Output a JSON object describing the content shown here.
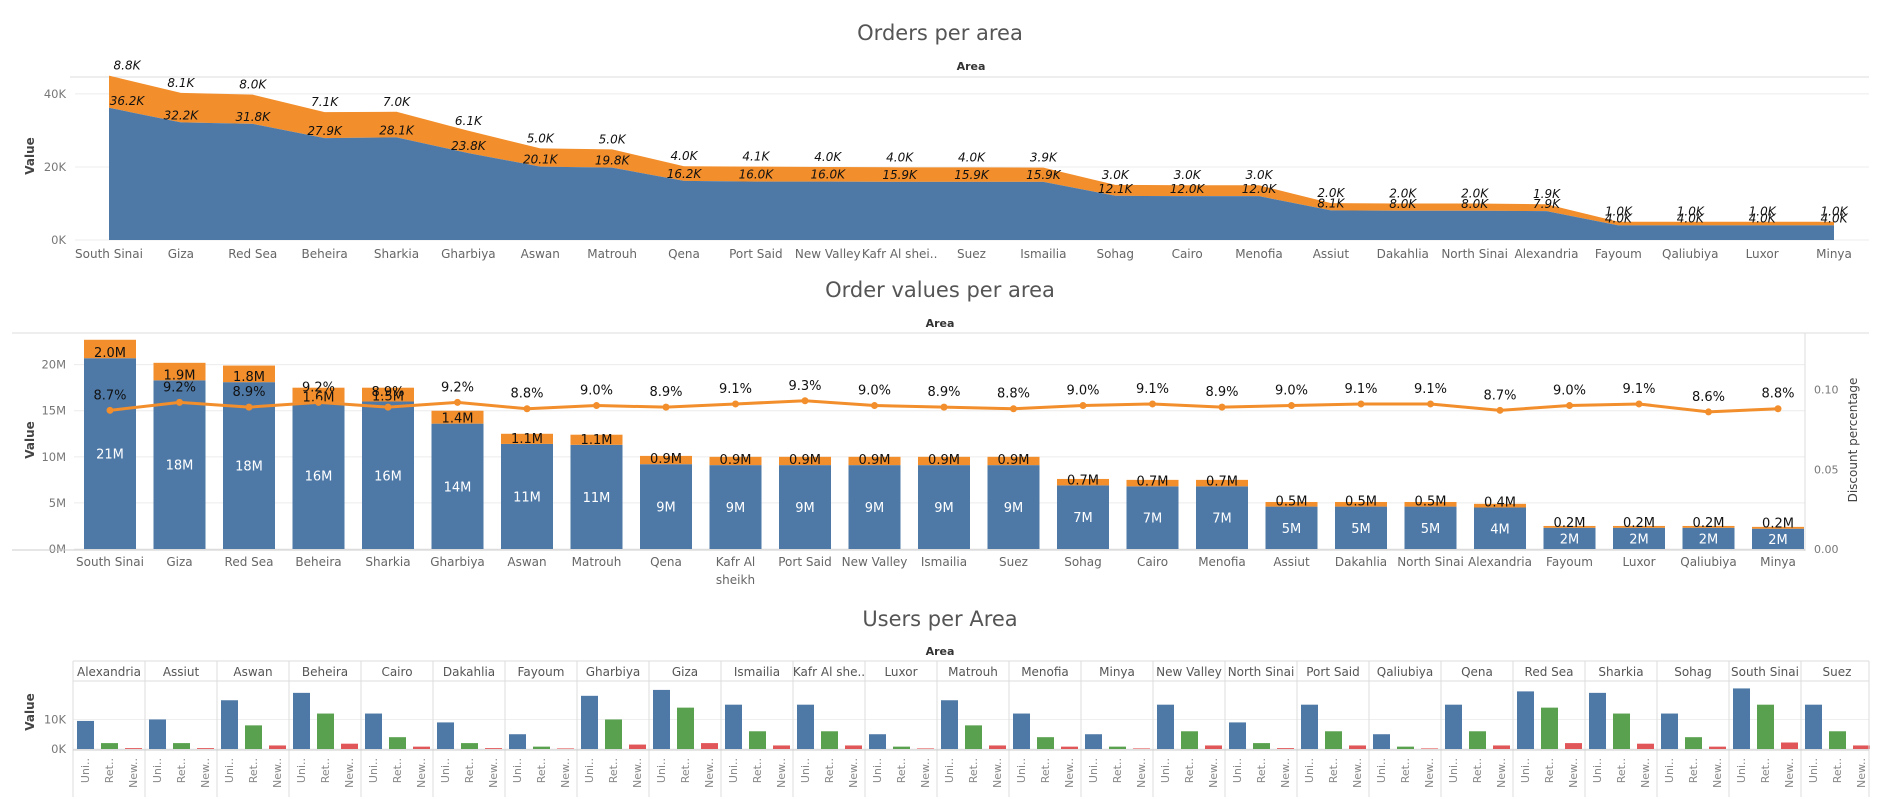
{
  "colors": {
    "blue": "#4e79a7",
    "orange": "#f28e2b",
    "green": "#59a14f",
    "red": "#e15759"
  },
  "chart_data": [
    {
      "type": "area",
      "title": "Orders per area",
      "header": "Area",
      "ylabel": "Value",
      "ylim": [
        0,
        46000
      ],
      "yticks": [
        "0K",
        "20K",
        "40K"
      ],
      "categories": [
        "South Sinai",
        "Giza",
        "Red Sea",
        "Beheira",
        "Sharkia",
        "Gharbiya",
        "Aswan",
        "Matrouh",
        "Qena",
        "Port Said",
        "New Valley",
        "Kafr Al shei..",
        "Suez",
        "Ismailia",
        "Sohag",
        "Cairo",
        "Menofia",
        "Assiut",
        "Dakahlia",
        "North Sinai",
        "Alexandria",
        "Fayoum",
        "Qaliubiya",
        "Luxor",
        "Minya"
      ],
      "series": [
        {
          "values": [
            36200,
            32200,
            31800,
            27900,
            28100,
            23800,
            20100,
            19800,
            16200,
            16000,
            16000,
            15900,
            15900,
            15900,
            12100,
            12000,
            12000,
            8100,
            8000,
            8000,
            7900,
            4000,
            4000,
            4000,
            4000
          ],
          "labels": [
            "36.2K",
            "32.2K",
            "31.8K",
            "27.9K",
            "28.1K",
            "23.8K",
            "20.1K",
            "19.8K",
            "16.2K",
            "16.0K",
            "16.0K",
            "15.9K",
            "15.9K",
            "15.9K",
            "12.1K",
            "12.0K",
            "12.0K",
            "8.1K",
            "8.0K",
            "8.0K",
            "7.9K",
            "4.0K",
            "4.0K",
            "4.0K",
            "4.0K"
          ]
        },
        {
          "values": [
            8800,
            8100,
            8000,
            7100,
            7000,
            6100,
            5000,
            5000,
            4000,
            4100,
            4000,
            4000,
            4000,
            3900,
            3000,
            3000,
            3000,
            2000,
            2000,
            2000,
            1900,
            1000,
            1000,
            1000,
            1000
          ],
          "labels": [
            "8.8K",
            "8.1K",
            "8.0K",
            "7.1K",
            "7.0K",
            "6.1K",
            "5.0K",
            "5.0K",
            "4.0K",
            "4.1K",
            "4.0K",
            "4.0K",
            "4.0K",
            "3.9K",
            "3.0K",
            "3.0K",
            "3.0K",
            "2.0K",
            "2.0K",
            "2.0K",
            "1.9K",
            "1.0K",
            "1.0K",
            "1.0K",
            "1.0K"
          ]
        }
      ]
    },
    {
      "type": "bar",
      "title": "Order values per area",
      "header": "Area",
      "ylabel": "Value",
      "ylabel_right": "Discount percentage",
      "ylim": [
        0,
        23000000
      ],
      "yticks": [
        "0M",
        "5M",
        "10M",
        "15M",
        "20M"
      ],
      "y2lim": [
        0,
        0.133
      ],
      "y2ticks": [
        "0.00",
        "0.05",
        "0.10"
      ],
      "categories": [
        "South Sinai",
        "Giza",
        "Red Sea",
        "Beheira",
        "Sharkia",
        "Gharbiya",
        "Aswan",
        "Matrouh",
        "Qena",
        "Kafr Al sheikh",
        "Port Said",
        "New Valley",
        "Ismailia",
        "Suez",
        "Sohag",
        "Cairo",
        "Menofia",
        "Assiut",
        "Dakahlia",
        "North Sinai",
        "Alexandria",
        "Fayoum",
        "Luxor",
        "Qaliubiya",
        "Minya"
      ],
      "series": [
        {
          "values": [
            20700000,
            18300000,
            18100000,
            15900000,
            16000000,
            13600000,
            11400000,
            11300000,
            9200000,
            9100000,
            9100000,
            9100000,
            9100000,
            9100000,
            6900000,
            6800000,
            6800000,
            4600000,
            4600000,
            4600000,
            4500000,
            2300000,
            2300000,
            2300000,
            2200000
          ],
          "labels": [
            "21M",
            "18M",
            "18M",
            "16M",
            "16M",
            "14M",
            "11M",
            "11M",
            "9M",
            "9M",
            "9M",
            "9M",
            "9M",
            "9M",
            "7M",
            "7M",
            "7M",
            "5M",
            "5M",
            "5M",
            "4M",
            "2M",
            "2M",
            "2M",
            "2M"
          ]
        },
        {
          "values": [
            2000000,
            1900000,
            1800000,
            1600000,
            1500000,
            1400000,
            1100000,
            1100000,
            900000,
            900000,
            900000,
            900000,
            900000,
            900000,
            700000,
            700000,
            700000,
            500000,
            500000,
            500000,
            400000,
            200000,
            200000,
            200000,
            200000
          ],
          "labels": [
            "2.0M",
            "1.9M",
            "1.8M",
            "1.6M",
            "1.5M",
            "1.4M",
            "1.1M",
            "1.1M",
            "0.9M",
            "0.9M",
            "0.9M",
            "0.9M",
            "0.9M",
            "0.9M",
            "0.7M",
            "0.7M",
            "0.7M",
            "0.5M",
            "0.5M",
            "0.5M",
            "0.4M",
            "0.2M",
            "0.2M",
            "0.2M",
            "0.2M"
          ]
        },
        {
          "values": [
            0.087,
            0.092,
            0.089,
            0.092,
            0.089,
            0.092,
            0.088,
            0.09,
            0.089,
            0.091,
            0.093,
            0.09,
            0.089,
            0.088,
            0.09,
            0.091,
            0.089,
            0.09,
            0.091,
            0.091,
            0.087,
            0.09,
            0.091,
            0.086,
            0.088
          ],
          "labels": [
            "8.7%",
            "9.2%",
            "8.9%",
            "9.2%",
            "8.9%",
            "9.2%",
            "8.8%",
            "9.0%",
            "8.9%",
            "9.1%",
            "9.3%",
            "9.0%",
            "8.9%",
            "8.8%",
            "9.0%",
            "9.1%",
            "8.9%",
            "9.0%",
            "9.1%",
            "9.1%",
            "8.7%",
            "9.0%",
            "9.1%",
            "8.6%",
            "8.8%"
          ]
        }
      ]
    },
    {
      "type": "bar",
      "title": "Users per Area",
      "header": "Area",
      "ylabel": "Value",
      "ylim": [
        0,
        22000
      ],
      "yticks": [
        "0K",
        "10K"
      ],
      "sub_categories": [
        "Uni..",
        "Ret..",
        "New.."
      ],
      "facets": [
        "Alexandria",
        "Assiut",
        "Aswan",
        "Beheira",
        "Cairo",
        "Dakahlia",
        "Fayoum",
        "Gharbiya",
        "Giza",
        "Ismailia",
        "Kafr Al she..",
        "Luxor",
        "Matrouh",
        "Menofia",
        "Minya",
        "New Valley",
        "North Sinai",
        "Port Said",
        "Qaliubiya",
        "Qena",
        "Red Sea",
        "Sharkia",
        "Sohag",
        "South Sinai",
        "Suez"
      ],
      "values": [
        [
          9500,
          2000,
          300
        ],
        [
          10000,
          2000,
          300
        ],
        [
          16500,
          8000,
          1200
        ],
        [
          19000,
          12000,
          1800
        ],
        [
          12000,
          4000,
          800
        ],
        [
          9000,
          2000,
          300
        ],
        [
          5000,
          800,
          200
        ],
        [
          18000,
          10000,
          1500
        ],
        [
          20000,
          14000,
          2000
        ],
        [
          15000,
          6000,
          1200
        ],
        [
          15000,
          6000,
          1200
        ],
        [
          5000,
          800,
          200
        ],
        [
          16500,
          8000,
          1200
        ],
        [
          12000,
          4000,
          800
        ],
        [
          5000,
          800,
          200
        ],
        [
          15000,
          6000,
          1200
        ],
        [
          9000,
          2000,
          300
        ],
        [
          15000,
          6000,
          1200
        ],
        [
          5000,
          800,
          200
        ],
        [
          15000,
          6000,
          1200
        ],
        [
          19500,
          14000,
          2000
        ],
        [
          19000,
          12000,
          1800
        ],
        [
          12000,
          4000,
          800
        ],
        [
          20500,
          15000,
          2200
        ],
        [
          15000,
          6000,
          1200
        ]
      ]
    }
  ]
}
